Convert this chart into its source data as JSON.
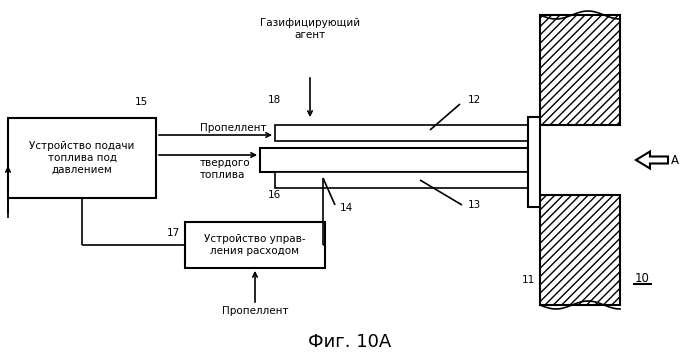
{
  "title": "Фиг. 10А",
  "background_color": "#ffffff",
  "label_gasifying_agent": "Газифицирующий\nагент",
  "label_propellant_top": "Пропеллент",
  "label_solid_fuel": "твердого\nтоплива",
  "label_propellant_bottom": "Пропеллент",
  "label_box1": "Устройство подачи\nтоплива под\nдавлением",
  "label_box2": "Устройство управ-\nления расходом",
  "num_10": "10",
  "num_11": "11",
  "num_12": "12",
  "num_13": "13",
  "num_14": "14",
  "num_15": "15",
  "num_16": "16",
  "num_17": "17",
  "num_18": "18",
  "label_A": "A"
}
